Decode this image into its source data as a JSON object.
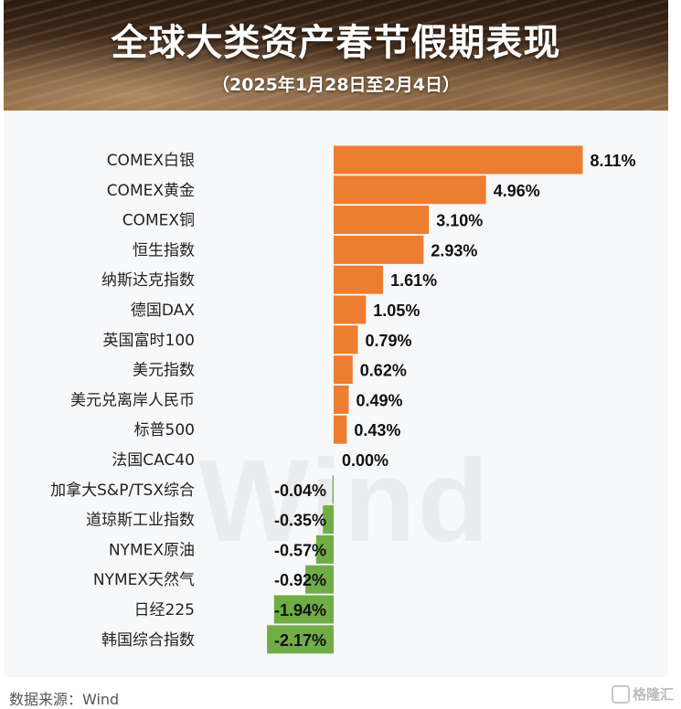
{
  "header": {
    "title": "全球大类资产春节假期表现",
    "subtitle": "（2025年1月28日至2月4日）"
  },
  "watermark": "Wind",
  "source": "数据来源：Wind",
  "logo_text": "格隆汇",
  "colors": {
    "positive": "#ED7D31",
    "negative": "#70AD47"
  },
  "chart_data": {
    "type": "bar",
    "orientation": "horizontal",
    "title": "全球大类资产春节假期表现",
    "subtitle": "（2025年1月28日至2月4日）",
    "categories": [
      "COMEX白银",
      "COMEX黄金",
      "COMEX铜",
      "恒生指数",
      "纳斯达克指数",
      "德国DAX",
      "英国富时100",
      "美元指数",
      "美元兑离岸人民币",
      "标普500",
      "法国CAC40",
      "加拿大S&P/TSX综合",
      "道琼斯工业指数",
      "NYMEX原油",
      "NYMEX天然气",
      "日经225",
      "韩国综合指数"
    ],
    "values": [
      8.11,
      4.96,
      3.1,
      2.93,
      1.61,
      1.05,
      0.79,
      0.62,
      0.49,
      0.43,
      0.0,
      -0.04,
      -0.35,
      -0.57,
      -0.92,
      -1.94,
      -2.17
    ],
    "labels": [
      "8.11%",
      "4.96%",
      "3.10%",
      "2.93%",
      "1.61%",
      "1.05%",
      "0.79%",
      "0.62%",
      "0.49%",
      "0.43%",
      "0.00%",
      "-0.04%",
      "-0.35%",
      "-0.57%",
      "-0.92%",
      "-1.94%",
      "-2.17%"
    ],
    "unit": "%",
    "xlim": [
      -2.17,
      8.11
    ],
    "grid": false,
    "legend": "none"
  }
}
